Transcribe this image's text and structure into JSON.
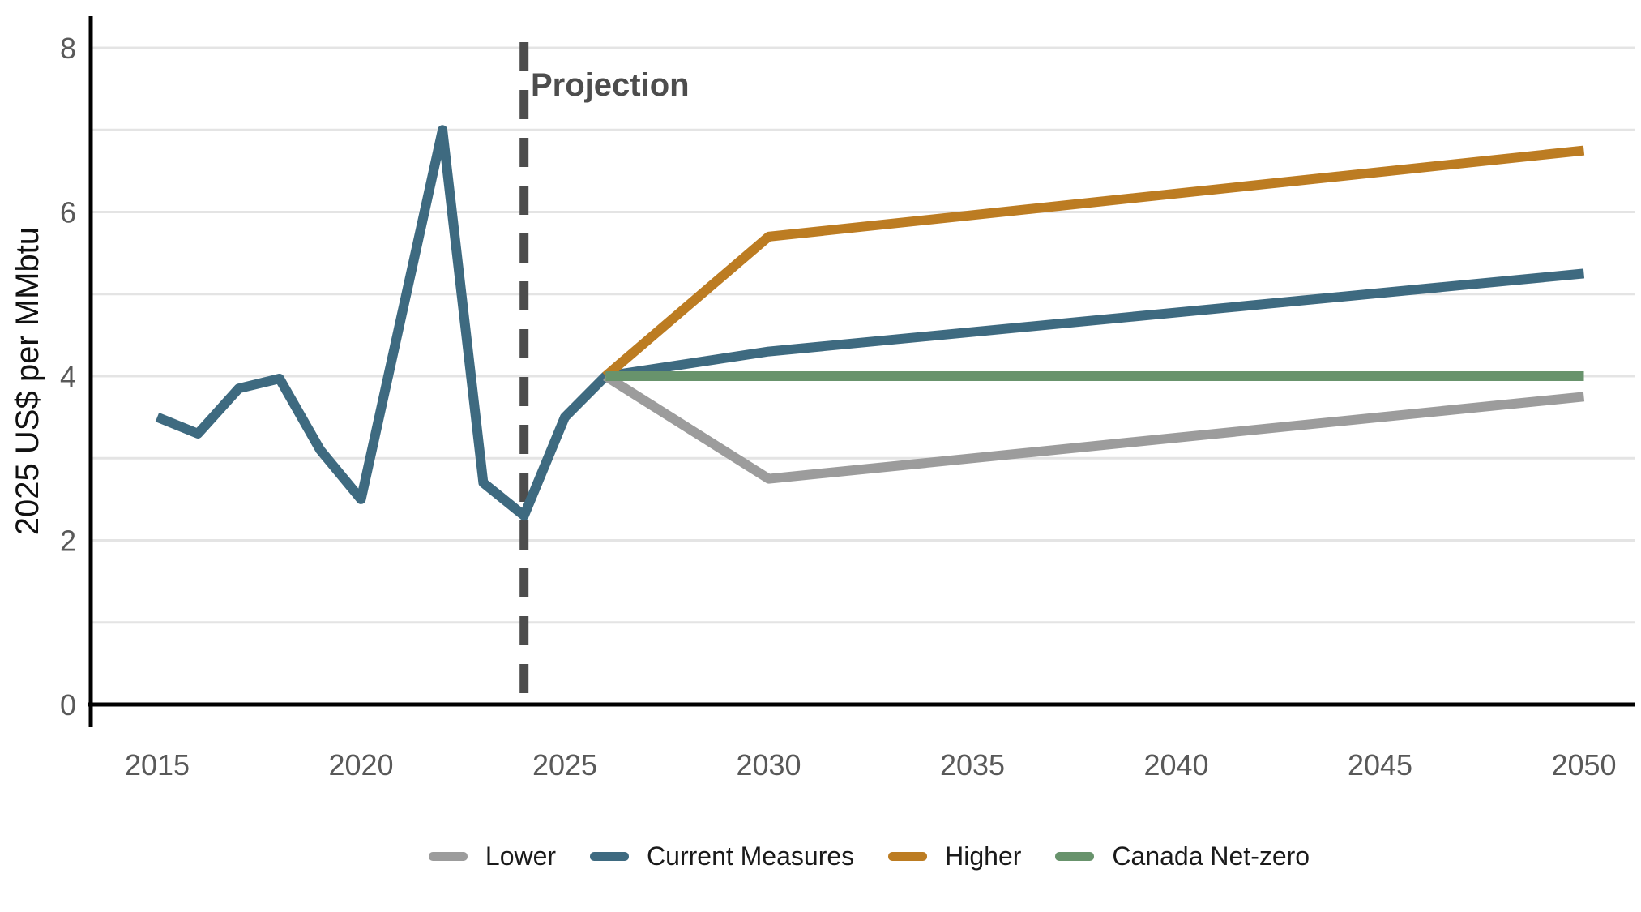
{
  "chart_data": {
    "type": "line",
    "title": "",
    "xlabel": "",
    "ylabel": "2025 US$ per MMbtu",
    "x_ticks": [
      2015,
      2020,
      2025,
      2030,
      2035,
      2040,
      2045,
      2050
    ],
    "y_ticks": [
      0,
      2,
      4,
      6,
      8
    ],
    "y_gridlines": [
      1,
      2,
      3,
      4,
      5,
      6,
      7,
      8
    ],
    "xlim": [
      2013.4,
      2051.3
    ],
    "ylim": [
      0,
      8.4
    ],
    "grid": "horizontal",
    "legend_position": "bottom",
    "projection": {
      "x": 2024,
      "label": "Projection"
    },
    "series": [
      {
        "name": "Current Measures",
        "color": "#3E6A80",
        "points": [
          [
            2015,
            3.5
          ],
          [
            2016,
            3.3
          ],
          [
            2017,
            3.85
          ],
          [
            2018,
            3.97
          ],
          [
            2019,
            3.1
          ],
          [
            2020,
            2.5
          ],
          [
            2021,
            4.75
          ],
          [
            2022,
            7.0
          ],
          [
            2023,
            2.7
          ],
          [
            2024,
            2.3
          ],
          [
            2025,
            3.5
          ],
          [
            2026,
            4.0
          ],
          [
            2030,
            4.3
          ],
          [
            2050,
            5.25
          ]
        ]
      },
      {
        "name": "Lower",
        "color": "#9C9C9C",
        "points": [
          [
            2026,
            4.0
          ],
          [
            2030,
            2.75
          ],
          [
            2050,
            3.75
          ]
        ]
      },
      {
        "name": "Higher",
        "color": "#BC7C22",
        "points": [
          [
            2026,
            4.0
          ],
          [
            2030,
            5.7
          ],
          [
            2050,
            6.75
          ]
        ]
      },
      {
        "name": "Canada Net-zero",
        "color": "#68936C",
        "points": [
          [
            2026,
            4.0
          ],
          [
            2050,
            4.0
          ]
        ]
      }
    ]
  },
  "legend": {
    "items": [
      {
        "label": "Lower",
        "color": "#9C9C9C"
      },
      {
        "label": "Current Measures",
        "color": "#3E6A80"
      },
      {
        "label": "Higher",
        "color": "#BC7C22"
      },
      {
        "label": "Canada Net-zero",
        "color": "#68936C"
      }
    ]
  }
}
